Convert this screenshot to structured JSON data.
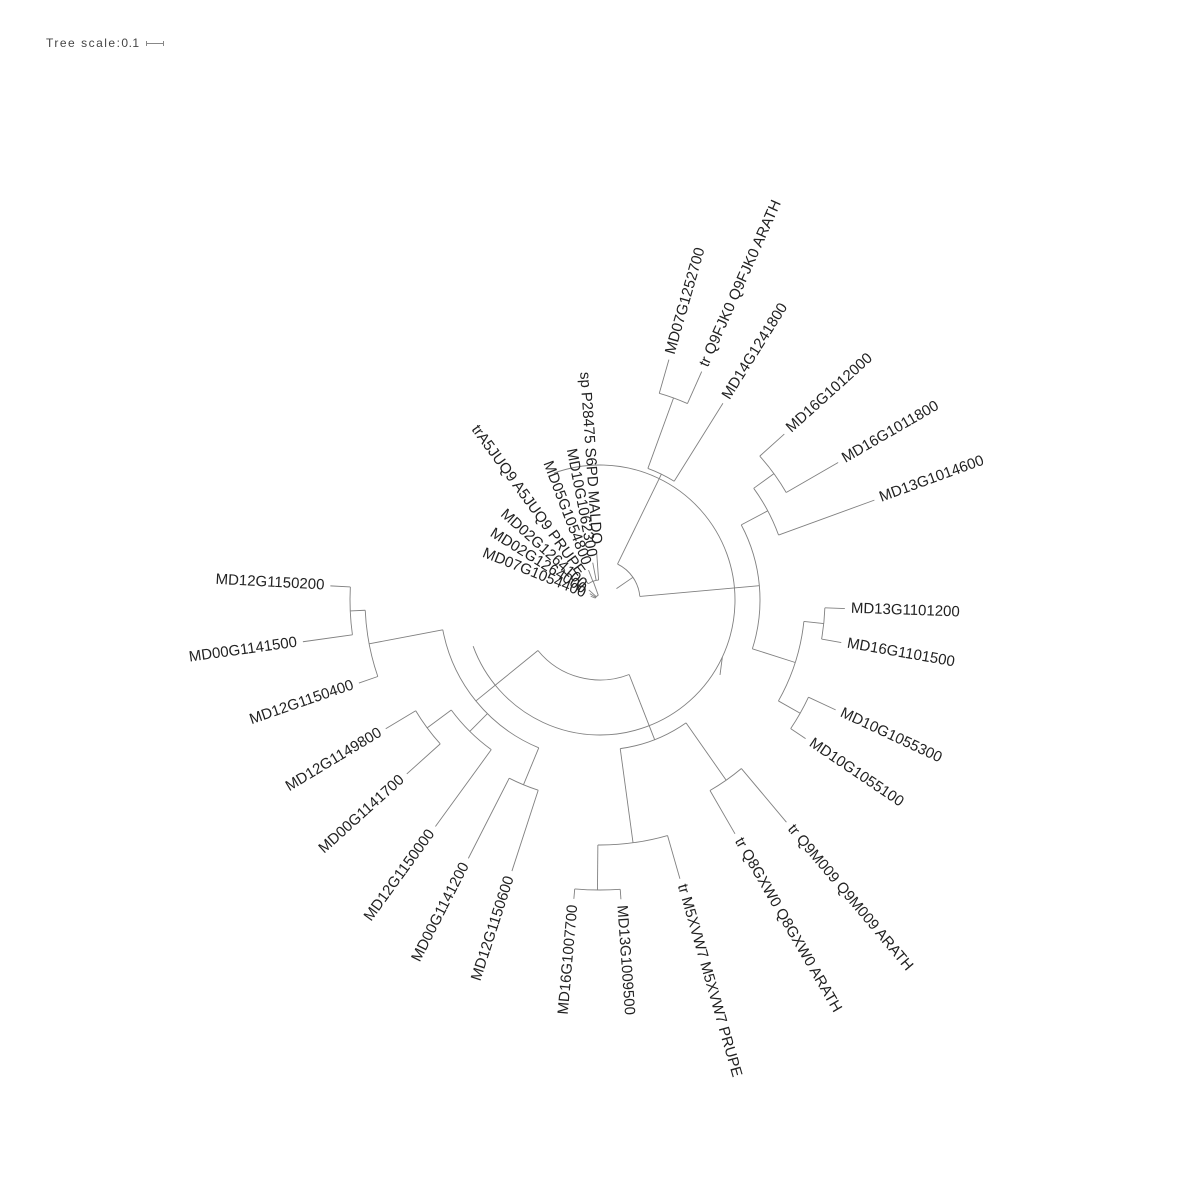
{
  "scale": {
    "label": "Tree scale:",
    "value": "0.1"
  },
  "colors": {
    "branch": "#808080",
    "text": "#222222"
  },
  "tree": {
    "type": "circular-phylogram",
    "leaves": [
      "MD07G1252700",
      "tr Q9FJK0 Q9FJK0 ARATH",
      "MD14G1241800",
      "MD16G1012000",
      "MD16G1011800",
      "MD13G1014600",
      "MD13G1101200",
      "MD16G1101500",
      "MD10G1055300",
      "MD10G1055100",
      "tr Q9M009 Q9M009 ARATH",
      "tr Q8GXW0 Q8GXW0 ARATH",
      "tr M5XVW7 M5XVW7 PRUPE",
      "MD13G1009500",
      "MD16G1007700",
      "MD12G1150600",
      "MD00G1141200",
      "MD12G1150000",
      "MD00G1141700",
      "MD12G1149800",
      "MD12G1150400",
      "MD00G1141500",
      "MD12G1150200",
      "MD07G1054400",
      "MD02G1264000",
      "MD02G1264100",
      "trA5JUQ9 A5JUQ9 PRUPE",
      "MD05G1054800",
      "MD10G1062300",
      "sp P28475 S6PD MALDO"
    ]
  }
}
